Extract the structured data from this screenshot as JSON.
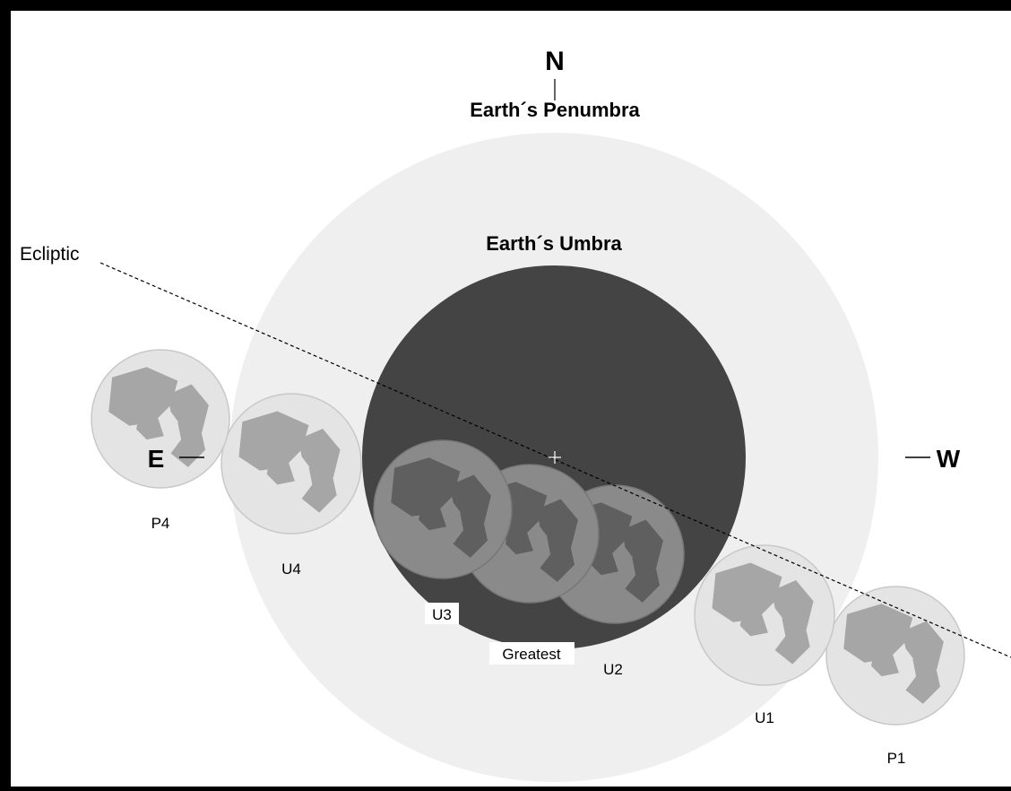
{
  "labels": {
    "north": "N",
    "penumbra": "Earth´s Penumbra",
    "umbra": "Earth´s Umbra",
    "ecliptic": "Ecliptic",
    "east": "E",
    "west": "W",
    "greatest": "Greatest"
  },
  "contacts": [
    {
      "id": "P4",
      "label": "P4"
    },
    {
      "id": "U4",
      "label": "U4"
    },
    {
      "id": "U3",
      "label": "U3"
    },
    {
      "id": "U2",
      "label": "U2"
    },
    {
      "id": "U1",
      "label": "U1"
    },
    {
      "id": "P1",
      "label": "P1"
    }
  ],
  "colors": {
    "background": "#ffffff",
    "frame": "#000000",
    "penumbra": "#efefef",
    "umbra": "#444444",
    "moon_in_penumbra": "#e4e4e4",
    "moon_maria_in_penumbra": "#a6a6a6",
    "moon_in_umbra": "#8a8a8a",
    "moon_maria_in_umbra": "#5f5f5f"
  }
}
